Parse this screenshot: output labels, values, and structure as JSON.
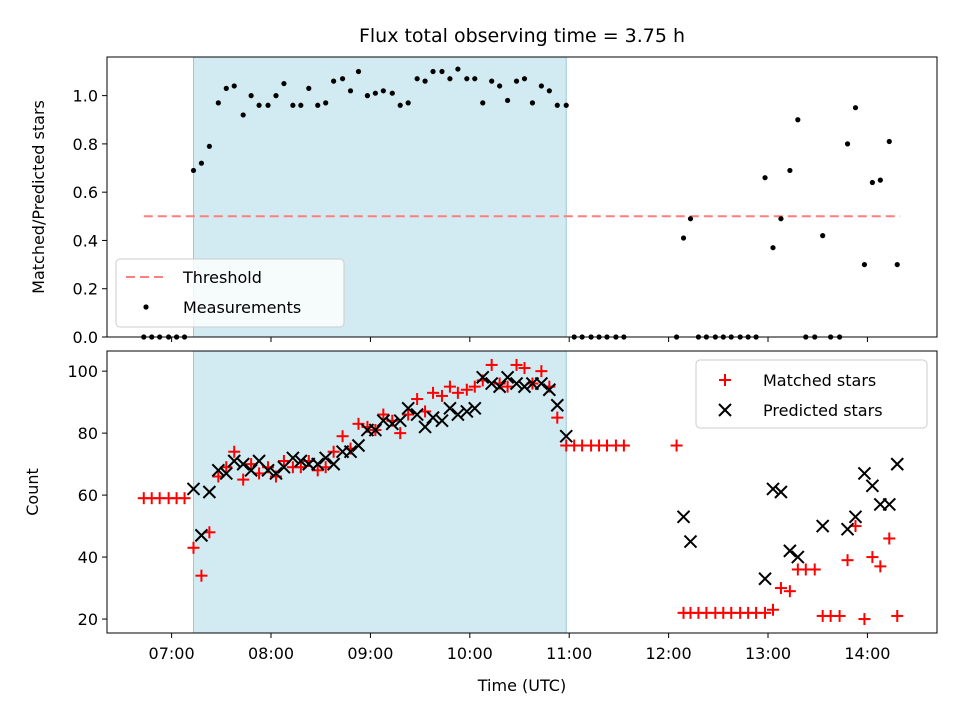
{
  "title": "Flux total observing time = 3.75 h",
  "chart_data": [
    {
      "type": "scatter",
      "panel": "top",
      "ylabel": "Matched/Predicted stars",
      "ylim": [
        0,
        1.16
      ],
      "yticks": [
        0.0,
        0.2,
        0.4,
        0.6,
        0.8,
        1.0
      ],
      "ytick_labels": [
        "0.0",
        "0.2",
        "0.4",
        "0.6",
        "0.8",
        "1.0"
      ],
      "xlim": [
        6.35,
        14.7
      ],
      "threshold": {
        "name": "Threshold",
        "y": 0.5,
        "x_start": 6.72,
        "x_end": 14.33,
        "color": "#ff7f7f"
      },
      "observing_window": {
        "start": 7.22,
        "end": 10.97,
        "color": "#add8e6"
      },
      "legend": [
        "Threshold",
        "Measurements"
      ],
      "legend_position": "lower left",
      "series": [
        {
          "name": "Measurements",
          "color": "#000000",
          "x": [
            6.72,
            6.8,
            6.88,
            6.97,
            7.05,
            7.13,
            7.22,
            7.3,
            7.38,
            7.47,
            7.55,
            7.63,
            7.72,
            7.8,
            7.88,
            7.97,
            8.05,
            8.13,
            8.22,
            8.3,
            8.38,
            8.47,
            8.55,
            8.63,
            8.72,
            8.8,
            8.88,
            8.97,
            9.05,
            9.13,
            9.22,
            9.3,
            9.38,
            9.47,
            9.55,
            9.63,
            9.72,
            9.8,
            9.88,
            9.97,
            10.05,
            10.13,
            10.22,
            10.3,
            10.38,
            10.47,
            10.55,
            10.63,
            10.72,
            10.8,
            10.88,
            10.97,
            11.05,
            11.13,
            11.22,
            11.3,
            11.38,
            11.47,
            11.55,
            12.08,
            12.15,
            12.22,
            12.3,
            12.38,
            12.47,
            12.55,
            12.63,
            12.72,
            12.8,
            12.88,
            12.97,
            13.05,
            13.13,
            13.22,
            13.3,
            13.38,
            13.47,
            13.55,
            13.63,
            13.72,
            13.8,
            13.88,
            13.97,
            14.05,
            14.13,
            14.22,
            14.3
          ],
          "y": [
            0,
            0,
            0,
            0,
            0,
            0,
            0.69,
            0.72,
            0.79,
            0.97,
            1.03,
            1.04,
            0.92,
            1.0,
            0.96,
            0.96,
            1.0,
            1.05,
            0.96,
            0.96,
            1.03,
            0.96,
            0.97,
            1.06,
            1.07,
            1.02,
            1.1,
            1.0,
            1.01,
            1.02,
            1.01,
            0.96,
            0.97,
            1.07,
            1.06,
            1.1,
            1.1,
            1.07,
            1.11,
            1.07,
            1.07,
            0.97,
            1.06,
            1.04,
            0.98,
            1.06,
            1.07,
            0.97,
            1.04,
            1.02,
            0.96,
            0.96,
            0,
            0,
            0,
            0,
            0,
            0,
            0,
            0,
            0.41,
            0.49,
            0,
            0,
            0,
            0,
            0,
            0,
            0,
            0,
            0.66,
            0.37,
            0.49,
            0.69,
            0.9,
            0,
            0,
            0.42,
            0,
            0,
            0.8,
            0.95,
            0.3,
            0.64,
            0.65,
            0.81,
            0.3
          ]
        }
      ]
    },
    {
      "type": "scatter",
      "panel": "bottom",
      "xlabel": "Time (UTC)",
      "ylabel": "Count",
      "ylim": [
        15.5,
        106.5
      ],
      "yticks": [
        20,
        40,
        60,
        80,
        100
      ],
      "ytick_labels": [
        "20",
        "40",
        "60",
        "80",
        "100"
      ],
      "xlim": [
        6.35,
        14.7
      ],
      "xticks": [
        7,
        8,
        9,
        10,
        11,
        12,
        13,
        14
      ],
      "xtick_labels": [
        "07:00",
        "08:00",
        "09:00",
        "10:00",
        "11:00",
        "12:00",
        "13:00",
        "14:00"
      ],
      "observing_window": {
        "start": 7.22,
        "end": 10.97,
        "color": "#add8e6"
      },
      "legend": [
        "Matched stars",
        "Predicted stars"
      ],
      "legend_position": "upper right",
      "series": [
        {
          "name": "Matched stars",
          "marker": "+",
          "color": "#ff0000",
          "x": [
            6.72,
            6.8,
            6.88,
            6.97,
            7.05,
            7.13,
            7.22,
            7.3,
            7.38,
            7.47,
            7.55,
            7.63,
            7.72,
            7.8,
            7.88,
            7.97,
            8.05,
            8.13,
            8.22,
            8.3,
            8.38,
            8.47,
            8.55,
            8.63,
            8.72,
            8.8,
            8.88,
            8.97,
            9.05,
            9.13,
            9.22,
            9.3,
            9.38,
            9.47,
            9.55,
            9.63,
            9.72,
            9.8,
            9.88,
            9.97,
            10.05,
            10.13,
            10.22,
            10.3,
            10.38,
            10.47,
            10.55,
            10.63,
            10.72,
            10.8,
            10.88,
            10.97,
            11.05,
            11.13,
            11.22,
            11.3,
            11.38,
            11.47,
            11.55,
            12.08,
            12.15,
            12.22,
            12.3,
            12.38,
            12.47,
            12.55,
            12.63,
            12.72,
            12.8,
            12.88,
            12.97,
            13.05,
            13.13,
            13.22,
            13.3,
            13.38,
            13.47,
            13.55,
            13.63,
            13.72,
            13.8,
            13.88,
            13.97,
            14.05,
            14.13,
            14.22,
            14.3
          ],
          "y": [
            59,
            59,
            59,
            59,
            59,
            59,
            43,
            34,
            48,
            66,
            69,
            74,
            65,
            70,
            67,
            69,
            66,
            71,
            69,
            69,
            71,
            68,
            69,
            74,
            79,
            75,
            83,
            82,
            81,
            86,
            84,
            80,
            86,
            91,
            87,
            93,
            92,
            95,
            93,
            94,
            95,
            97,
            102,
            96,
            95,
            102,
            101,
            96,
            100,
            95,
            85,
            76,
            76,
            76,
            76,
            76,
            76,
            76,
            76,
            76,
            22,
            22,
            22,
            22,
            22,
            22,
            22,
            22,
            22,
            22,
            22,
            23,
            30,
            29,
            36,
            36,
            36,
            21,
            21,
            21,
            39,
            50,
            20,
            40,
            37,
            46,
            21
          ]
        },
        {
          "name": "Predicted stars",
          "marker": "x",
          "color": "#000000",
          "x": [
            7.22,
            7.3,
            7.38,
            7.47,
            7.55,
            7.63,
            7.72,
            7.8,
            7.88,
            7.97,
            8.05,
            8.13,
            8.22,
            8.3,
            8.38,
            8.47,
            8.55,
            8.63,
            8.72,
            8.8,
            8.88,
            8.97,
            9.05,
            9.13,
            9.22,
            9.3,
            9.38,
            9.47,
            9.55,
            9.63,
            9.72,
            9.8,
            9.88,
            9.97,
            10.05,
            10.13,
            10.22,
            10.3,
            10.38,
            10.47,
            10.55,
            10.63,
            10.72,
            10.8,
            10.88,
            10.97,
            12.15,
            12.22,
            12.97,
            13.05,
            13.13,
            13.22,
            13.3,
            13.55,
            13.8,
            13.88,
            13.97,
            14.05,
            14.13,
            14.22,
            14.3
          ],
          "y": [
            62,
            47,
            61,
            68,
            67,
            71,
            70,
            68,
            71,
            68,
            67,
            69,
            72,
            71,
            70,
            70,
            72,
            70,
            74,
            74,
            76,
            81,
            81,
            84,
            83,
            84,
            88,
            86,
            82,
            85,
            84,
            88,
            86,
            87,
            88,
            98,
            96,
            95,
            98,
            96,
            95,
            96,
            96,
            94,
            89,
            79,
            53,
            45,
            33,
            62,
            61,
            42,
            40,
            50,
            49,
            53,
            67,
            63,
            57,
            57,
            70
          ]
        }
      ]
    }
  ]
}
